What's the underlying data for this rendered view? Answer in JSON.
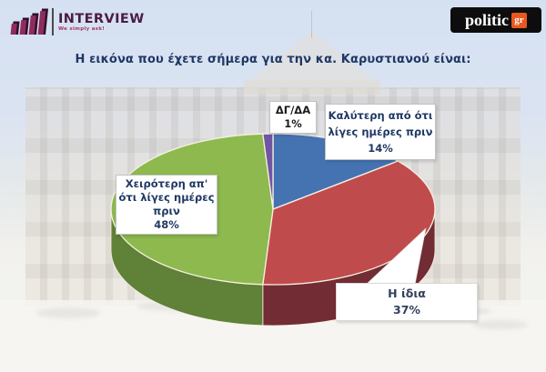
{
  "header": {
    "interview_logo": {
      "name": "INTERVIEW",
      "tagline": "We simply ask!"
    },
    "politic_logo": {
      "name": "politic",
      "suffix": "gr"
    }
  },
  "title": "Η εικόνα που έχετε σήμερα για την κα. Καρυστιανού είναι:",
  "chart_data": {
    "type": "pie",
    "style": "3d",
    "title": "Η εικόνα που έχετε σήμερα για την κα. Καρυστιανού είναι:",
    "unit": "%",
    "start_angle_deg": 0,
    "direction": "clockwise",
    "slices": [
      {
        "label": "Καλύτερη από ότι λίγες ημέρες πριν",
        "value": 14,
        "color": "#4573b2",
        "side_color": "#2f5383"
      },
      {
        "label": "Η ίδια",
        "value": 37,
        "color": "#c04b4d",
        "side_color": "#722c33"
      },
      {
        "label": "Χειρότερη απ' ότι λίγες ημέρες πριν",
        "value": 48,
        "color": "#8db94e",
        "side_color": "#5f8138"
      },
      {
        "label": "ΔΓ/ΔΑ",
        "value": 1,
        "color": "#7056a2",
        "side_color": "#4a3a70"
      }
    ]
  },
  "labels": {
    "dgda": {
      "lines": [
        "ΔΓ/ΔΑ",
        "1%"
      ]
    },
    "kalyteri": {
      "lines": [
        "Καλύτερη από ότι",
        "λίγες ημέρες πριν",
        "14%"
      ]
    },
    "xeiroteri": {
      "lines": [
        "Χειρότερη απ'",
        "ότι λίγες ημέρες",
        "πριν",
        "48%"
      ]
    },
    "idia": {
      "lines": [
        "Η ίδια",
        "37%"
      ]
    }
  },
  "colors": {
    "title_text": "#1f3864",
    "label_text_navy": "#1f3864",
    "politic_accent": "#e8571f",
    "interview_plum": "#4b1c46",
    "box_border": "#c2c2c2",
    "slice_outline": "#f7f1e2"
  }
}
